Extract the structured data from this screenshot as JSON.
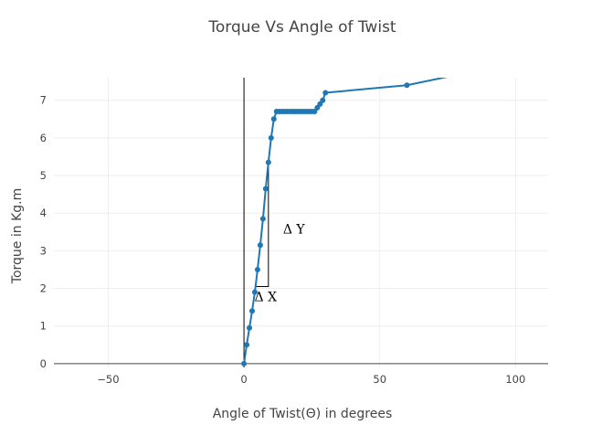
{
  "chart_data": {
    "type": "line",
    "title": "Torque Vs Angle of Twist",
    "xlabel": "Angle of Twist(Θ) in degrees",
    "ylabel": "Torque in Kg.m",
    "xlim": [
      -70,
      112
    ],
    "ylim": [
      -0.1,
      7.6
    ],
    "x_ticks": [
      -50,
      0,
      50,
      100
    ],
    "y_ticks": [
      0,
      1,
      2,
      3,
      4,
      5,
      6,
      7
    ],
    "x_tick_labels": [
      "−50",
      "0",
      "50",
      "100"
    ],
    "y_tick_labels": [
      "0",
      "1",
      "2",
      "3",
      "4",
      "5",
      "6",
      "7"
    ],
    "grid": true,
    "series": [
      {
        "color": "#1f77b4",
        "mode": "lines+markers",
        "x": [
          0,
          1,
          2,
          3,
          4,
          5,
          6,
          7,
          8,
          9,
          10,
          11,
          12,
          13,
          14,
          15,
          16,
          17,
          18,
          19,
          20,
          21,
          22,
          23,
          24,
          25,
          26,
          27,
          28,
          29,
          30,
          60,
          80
        ],
        "y": [
          0,
          0.5,
          0.95,
          1.4,
          1.9,
          2.5,
          3.15,
          3.85,
          4.65,
          5.35,
          6.0,
          6.5,
          6.7,
          6.7,
          6.7,
          6.7,
          6.7,
          6.7,
          6.7,
          6.7,
          6.7,
          6.7,
          6.7,
          6.7,
          6.7,
          6.7,
          6.7,
          6.8,
          6.9,
          7.0,
          7.2,
          7.4,
          7.7
        ],
        "marker_count": 32
      }
    ],
    "annotations": {
      "delta_y": "Δ Y",
      "delta_x": "Δ X",
      "triangle": {
        "x": [
          4.2,
          9
        ],
        "y": [
          2.05,
          5.35
        ]
      }
    }
  }
}
